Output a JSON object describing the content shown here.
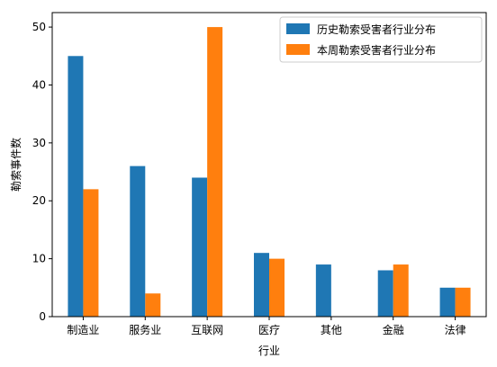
{
  "chart_data": {
    "type": "bar",
    "categories": [
      "制造业",
      "服务业",
      "互联网",
      "医疗",
      "其他",
      "金融",
      "法律"
    ],
    "series": [
      {
        "name": "历史勒索受害者行业分布",
        "color": "#1f77b4",
        "values": [
          45,
          26,
          24,
          11,
          9,
          8,
          5
        ]
      },
      {
        "name": "本周勒索受害者行业分布",
        "color": "#ff7f0e",
        "values": [
          22,
          4,
          50,
          10,
          0,
          9,
          5
        ]
      }
    ],
    "xlabel": "行业",
    "ylabel": "勒索事件数",
    "ylim": [
      0,
      52.5
    ],
    "yticks": [
      0,
      10,
      20,
      30,
      40,
      50
    ],
    "grid": false,
    "legend_position": "upper-right"
  }
}
